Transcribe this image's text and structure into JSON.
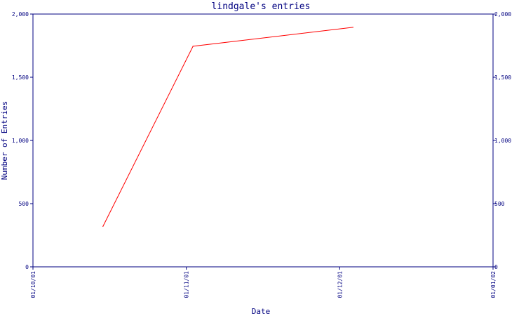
{
  "chart_data": {
    "type": "line",
    "title": "lindgale's entries",
    "xlabel": "Date",
    "ylabel": "Number of Entries",
    "x_ticks": [
      "01/10/01",
      "01/11/01",
      "01/12/01",
      "01/01/02"
    ],
    "y_ticks": [
      "0",
      "500",
      "1,000",
      "1,500",
      "2,000"
    ],
    "ylim": [
      0,
      2000
    ],
    "xlim": [
      "2001-10-01",
      "2002-01-01"
    ],
    "grid": false,
    "series": [
      {
        "points": [
          {
            "x": "2001-10-15",
            "y": 320
          },
          {
            "x": "2001-11-02",
            "y": 1745
          },
          {
            "x": "2001-12-04",
            "y": 1895
          }
        ]
      }
    ],
    "colors": {
      "axis": "#000080",
      "text": "#000080",
      "line": "#ff0000",
      "background": "#ffffff"
    }
  }
}
